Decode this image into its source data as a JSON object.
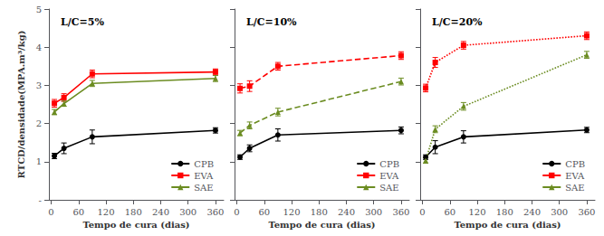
{
  "chart_data": [
    {
      "type": "line",
      "title": "L/C=5%",
      "xlabel": "Tempo de cura (dias)",
      "ylabel": "RTCD/densidade(MPA.m³/kg)",
      "x": [
        7,
        28,
        90,
        360
      ],
      "series": [
        {
          "name": "CPB",
          "color": "#000000",
          "marker": "circle",
          "line_style": "solid",
          "values": [
            1.15,
            1.35,
            1.65,
            1.82
          ],
          "yerr": [
            0.07,
            0.14,
            0.18,
            0.07
          ]
        },
        {
          "name": "EVA",
          "color": "#ff0000",
          "marker": "square",
          "line_style": "solid",
          "values": [
            2.53,
            2.68,
            3.3,
            3.35
          ],
          "yerr": [
            0.1,
            0.1,
            0.1,
            0.08
          ]
        },
        {
          "name": "SAE",
          "color": "#6b8c21",
          "marker": "triangle",
          "line_style": "solid",
          "values": [
            2.3,
            2.52,
            3.05,
            3.18
          ],
          "yerr": [
            0.07,
            0.07,
            0.08,
            0.08
          ]
        }
      ],
      "xlim": [
        -5,
        378
      ],
      "xticks": [
        0,
        60,
        120,
        180,
        240,
        300,
        360
      ],
      "ylim": [
        0,
        5
      ],
      "yticks": [
        {
          "value": 0,
          "label": "-"
        },
        1,
        2,
        3,
        4,
        5
      ],
      "legend": "lower right",
      "grid": false
    },
    {
      "type": "line",
      "title": "L/C=10%",
      "xlabel": "Tempo de cura (dias)",
      "x": [
        7,
        28,
        90,
        360
      ],
      "series": [
        {
          "name": "CPB",
          "color": "#000000",
          "marker": "circle",
          "line_style": "solid",
          "values": [
            1.12,
            1.35,
            1.7,
            1.82
          ],
          "yerr": [
            0.06,
            0.09,
            0.16,
            0.09
          ]
        },
        {
          "name": "EVA",
          "color": "#ff0000",
          "marker": "square",
          "line_style": "dashed",
          "values": [
            2.92,
            2.98,
            3.5,
            3.78
          ],
          "yerr": [
            0.12,
            0.14,
            0.1,
            0.1
          ]
        },
        {
          "name": "SAE",
          "color": "#6b8c21",
          "marker": "triangle",
          "line_style": "dashed",
          "values": [
            1.75,
            1.95,
            2.3,
            3.1
          ],
          "yerr": [
            0.07,
            0.09,
            0.1,
            0.09
          ]
        }
      ],
      "xlim": [
        -5,
        378
      ],
      "xticks": [
        0,
        60,
        120,
        180,
        240,
        300,
        360
      ],
      "ylim": [
        0,
        5
      ],
      "yticks": [
        0,
        1,
        2,
        3,
        4,
        5
      ],
      "tick_labels": "x",
      "legend": "lower right",
      "grid": false
    },
    {
      "type": "line",
      "title": "L/C=20%",
      "xlabel": "Tempo de cura (dias)",
      "x": [
        7,
        28,
        90,
        360
      ],
      "series": [
        {
          "name": "CPB",
          "color": "#000000",
          "marker": "circle",
          "line_style": "solid",
          "values": [
            1.12,
            1.38,
            1.65,
            1.83
          ],
          "yerr": [
            0.06,
            0.17,
            0.16,
            0.07
          ]
        },
        {
          "name": "EVA",
          "color": "#ff0000",
          "marker": "square",
          "line_style": "dotted",
          "values": [
            2.93,
            3.6,
            4.05,
            4.3
          ],
          "yerr": [
            0.1,
            0.13,
            0.1,
            0.1
          ]
        },
        {
          "name": "SAE",
          "color": "#6b8c21",
          "marker": "triangle",
          "line_style": "dotted",
          "values": [
            1.03,
            1.85,
            2.45,
            3.8
          ],
          "yerr": [
            0.07,
            0.09,
            0.1,
            0.09
          ]
        }
      ],
      "xlim": [
        -5,
        378
      ],
      "xticks": [
        0,
        60,
        120,
        180,
        240,
        300,
        360
      ],
      "ylim": [
        0,
        5
      ],
      "yticks": [
        0,
        1,
        2,
        3,
        4,
        5
      ],
      "tick_labels": "x",
      "legend": "lower right",
      "grid": false
    }
  ]
}
